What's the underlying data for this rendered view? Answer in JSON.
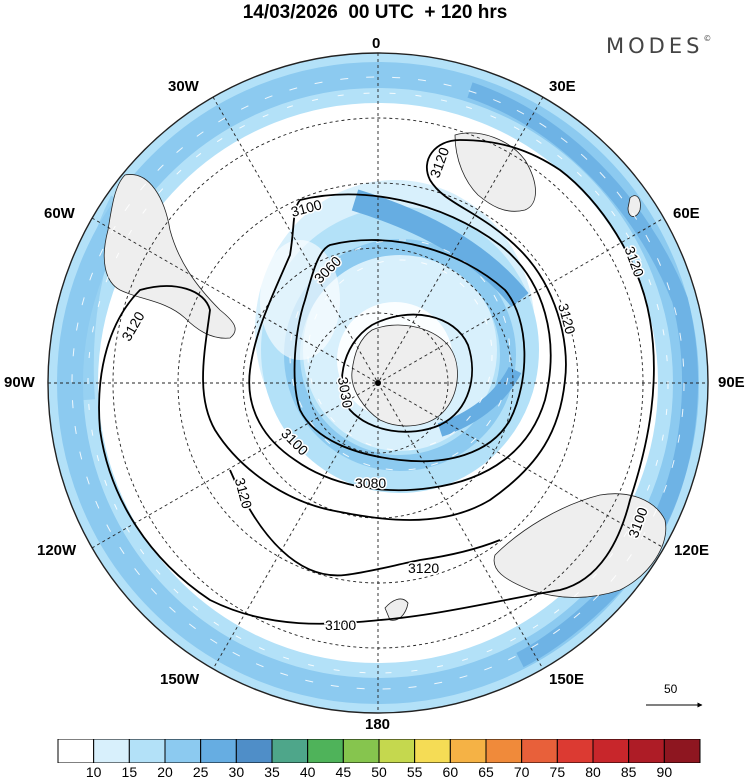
{
  "title": "14/03/2026  00 UTC  + 120 hrs",
  "brand": "MODES",
  "brand_mark": "©",
  "longitude_labels": [
    "0",
    "30E",
    "60E",
    "90E",
    "120E",
    "150E",
    "180",
    "150W",
    "120W",
    "90W",
    "60W",
    "30W"
  ],
  "contour_labels": [
    "3120",
    "3120",
    "3120",
    "3120",
    "3120",
    "3120",
    "3100",
    "3100",
    "3100",
    "3100",
    "3080",
    "3060",
    "3030"
  ],
  "vector_reference": "50",
  "colorbar": {
    "ticks": [
      "10",
      "15",
      "20",
      "25",
      "30",
      "35",
      "40",
      "45",
      "50",
      "55",
      "60",
      "65",
      "70",
      "75",
      "80",
      "85",
      "90"
    ],
    "colors": [
      "#ffffff",
      "#d8f0fc",
      "#b3e1f8",
      "#8ccaf0",
      "#66ade2",
      "#4f8ec8",
      "#4ea68a",
      "#4fb35a",
      "#86c54e",
      "#c5d84e",
      "#f5dc55",
      "#f5b245",
      "#f08a3a",
      "#e8603a",
      "#dc3a32",
      "#c8262b",
      "#ae1c26",
      "#8e1620"
    ]
  }
}
